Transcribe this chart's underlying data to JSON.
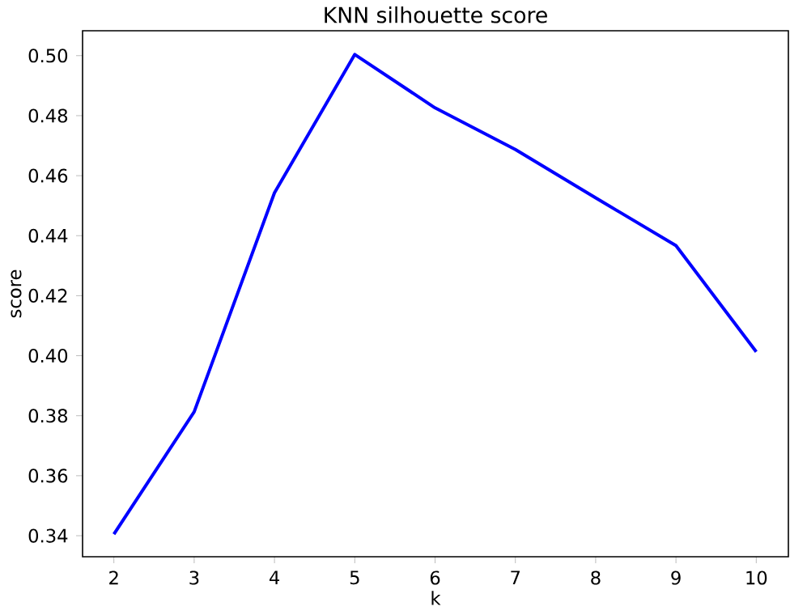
{
  "chart_data": {
    "type": "line",
    "title": "KNN silhouette score",
    "xlabel": "k",
    "ylabel": "score",
    "x": [
      2,
      3,
      4,
      5,
      6,
      7,
      8,
      9,
      10
    ],
    "series": [
      {
        "color": "#0000ff",
        "values": [
          0.3405,
          0.3813,
          0.4543,
          0.5004,
          0.4826,
          0.4687,
          0.4526,
          0.4367,
          0.4013
        ]
      }
    ],
    "xlim": [
      1.61,
      10.4
    ],
    "ylim": [
      0.333,
      0.5083
    ],
    "xticks": [
      2,
      3,
      4,
      5,
      6,
      7,
      8,
      9,
      10
    ],
    "yticks": [
      {
        "value": 0.34,
        "label": "0.34"
      },
      {
        "value": 0.36,
        "label": "0.36"
      },
      {
        "value": 0.38,
        "label": "0.38"
      },
      {
        "value": 0.4,
        "label": "0.40"
      },
      {
        "value": 0.42,
        "label": "0.42"
      },
      {
        "value": 0.44,
        "label": "0.44"
      },
      {
        "value": 0.46,
        "label": "0.46"
      },
      {
        "value": 0.48,
        "label": "0.48"
      },
      {
        "value": 0.5,
        "label": "0.50"
      }
    ],
    "grid": false,
    "marker": "none",
    "line_style": "solid"
  }
}
